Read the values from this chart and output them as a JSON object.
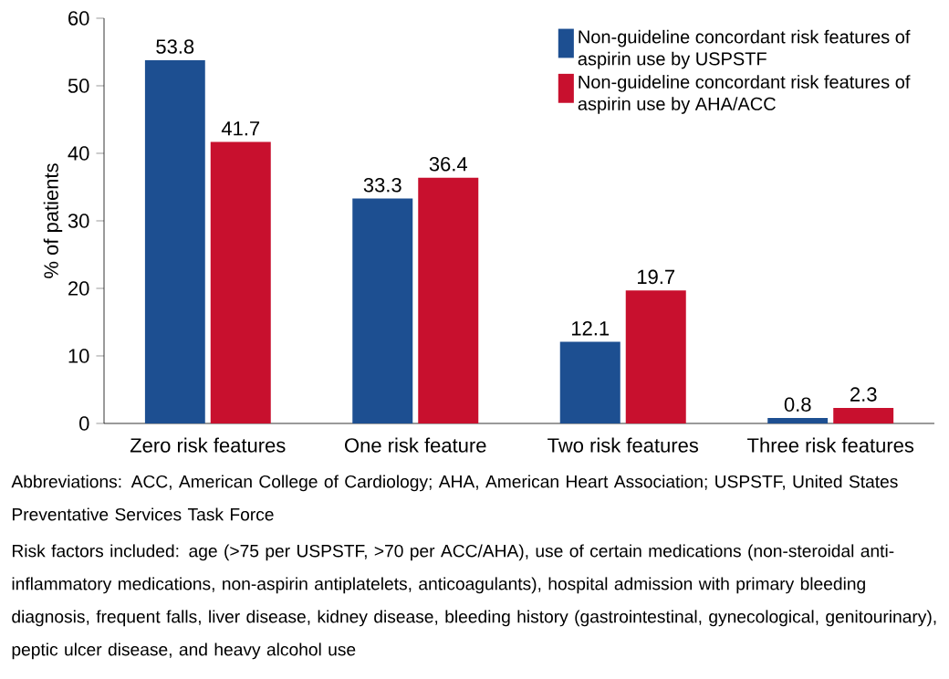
{
  "chart_data": {
    "type": "bar",
    "ylabel": "% of patients",
    "categories": [
      "Zero risk features",
      "One risk feature",
      "Two risk features",
      "Three risk features"
    ],
    "series": [
      {
        "name": "Non-guideline concordant risk features of aspirin use by USPSTF",
        "color": "#1d4f91",
        "values": [
          53.8,
          33.3,
          12.1,
          0.8
        ]
      },
      {
        "name": "Non-guideline concordant risk features of aspirin use by AHA/ACC",
        "color": "#c8102e",
        "values": [
          41.7,
          36.4,
          19.7,
          2.3
        ]
      }
    ],
    "ylim": [
      0,
      60
    ],
    "yticks": [
      0,
      10,
      20,
      30,
      40,
      50,
      60
    ],
    "grid": false,
    "legend": "top right",
    "data_labels": true,
    "annotations": [
      "Abbreviations: ACC, American College of Cardiology; AHA, American Heart Association; USPSTF, United States Preventative Services Task Force",
      "Risk factors included: age (>75 per USPSTF, >70 per ACC/AHA), use of certain medications (non-steroidal anti-inflammatory medications, non-aspirin antiplatelets, anticoagulants), hospital admission with primary bleeding diagnosis, frequent falls, liver disease, kidney disease, bleeding history (gastrointestinal, gynecological, genitourinary), peptic ulcer disease, and heavy alcohol use"
    ]
  }
}
